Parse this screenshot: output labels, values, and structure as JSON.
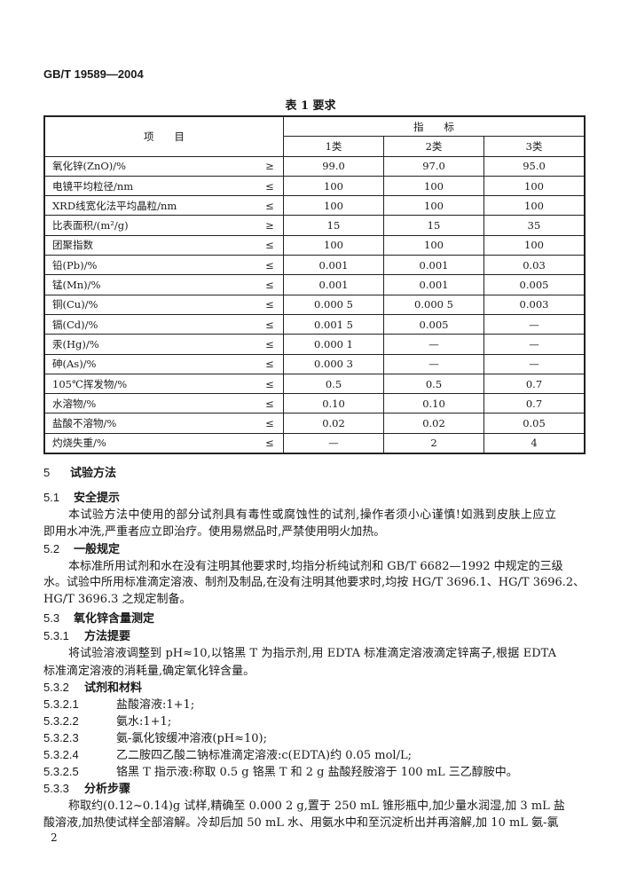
{
  "header": {
    "standard_number": "GB/T 19589—2004"
  },
  "table": {
    "title": "表 1  要求",
    "col_item": "项　　目",
    "col_group": "指　　标",
    "categories": [
      "1类",
      "2类",
      "3类"
    ],
    "rows": [
      {
        "item": "氧化锌(ZnO)/%",
        "op": "≥",
        "values": [
          "99.0",
          "97.0",
          "95.0"
        ]
      },
      {
        "item": "电镜平均粒径/nm",
        "op": "≤",
        "values": [
          "100",
          "100",
          "100"
        ]
      },
      {
        "item": "XRD线宽化法平均晶粒/nm",
        "op": "≤",
        "values": [
          "100",
          "100",
          "100"
        ]
      },
      {
        "item": "比表面积/(m²/g)",
        "op": "≥",
        "values": [
          "15",
          "15",
          "35"
        ]
      },
      {
        "item": "团聚指数",
        "op": "≤",
        "values": [
          "100",
          "100",
          "100"
        ]
      },
      {
        "item": "铅(Pb)/%",
        "op": "≤",
        "values": [
          "0.001",
          "0.001",
          "0.03"
        ]
      },
      {
        "item": "锰(Mn)/%",
        "op": "≤",
        "values": [
          "0.001",
          "0.001",
          "0.005"
        ]
      },
      {
        "item": "铜(Cu)/%",
        "op": "≤",
        "values": [
          "0.000 5",
          "0.000 5",
          "0.003"
        ]
      },
      {
        "item": "镉(Cd)/%",
        "op": "≤",
        "values": [
          "0.001 5",
          "0.005",
          "—"
        ]
      },
      {
        "item": "汞(Hg)/%",
        "op": "≤",
        "values": [
          "0.000 1",
          "—",
          "—"
        ]
      },
      {
        "item": "砷(As)/%",
        "op": "≤",
        "values": [
          "0.000 3",
          "—",
          "—"
        ]
      },
      {
        "item": "105℃挥发物/%",
        "op": "≤",
        "values": [
          "0.5",
          "0.5",
          "0.7"
        ]
      },
      {
        "item": "水溶物/%",
        "op": "≤",
        "values": [
          "0.10",
          "0.10",
          "0.7"
        ]
      },
      {
        "item": "盐酸不溶物/%",
        "op": "≤",
        "values": [
          "0.02",
          "0.02",
          "0.05"
        ]
      },
      {
        "item": "灼烧失重/%",
        "op": "≤",
        "values": [
          "—",
          "2",
          "4"
        ]
      }
    ]
  },
  "sections": {
    "s5": {
      "num": "5",
      "title": "试验方法"
    },
    "s5_1": {
      "num": "5.1",
      "title": "安全提示",
      "lines": [
        "本试验方法中使用的部分试剂具有毒性或腐蚀性的试剂,操作者须小心谨慎!如溅到皮肤上应立",
        "即用水冲洗,严重者应立即治疗。使用易燃品时,严禁使用明火加热。"
      ]
    },
    "s5_2": {
      "num": "5.2",
      "title": "一般规定",
      "lines": [
        "本标准所用试剂和水在没有注明其他要求时,均指分析纯试剂和 GB/T 6682—1992 中规定的三级",
        "水。试验中所用标准滴定溶液、制剂及制品,在没有注明其他要求时,均按 HG/T 3696.1、HG/T 3696.2、",
        "HG/T 3696.3 之规定制备。"
      ]
    },
    "s5_3": {
      "num": "5.3",
      "title": "氧化锌含量测定"
    },
    "s5_3_1": {
      "num": "5.3.1",
      "title": "方法提要",
      "lines": [
        "将试验溶液调整到 pH≈10,以铬黑 T 为指示剂,用 EDTA 标准滴定溶液滴定锌离子,根据 EDTA",
        "标准滴定溶液的消耗量,确定氧化锌含量。"
      ]
    },
    "s5_3_2": {
      "num": "5.3.2",
      "title": "试剂和材料",
      "items": [
        {
          "num": "5.3.2.1",
          "text": "盐酸溶液:1+1;"
        },
        {
          "num": "5.3.2.2",
          "text": "氨水:1+1;"
        },
        {
          "num": "5.3.2.3",
          "text": "氨-氯化铵缓冲溶液(pH≈10);"
        },
        {
          "num": "5.3.2.4",
          "text": "乙二胺四乙酸二钠标准滴定溶液:c(EDTA)约 0.05 mol/L;"
        },
        {
          "num": "5.3.2.5",
          "text": "铬黑 T 指示液:称取 0.5 g 铬黑 T 和 2 g 盐酸羟胺溶于 100 mL 三乙醇胺中。"
        }
      ]
    },
    "s5_3_3": {
      "num": "5.3.3",
      "title": "分析步骤",
      "lines": [
        "称取约(0.12~0.14)g 试样,精确至 0.000 2 g,置于 250 mL 锥形瓶中,加少量水润湿,加 3 mL 盐",
        "酸溶液,加热使试样全部溶解。冷却后加 50 mL 水、用氨水中和至沉淀析出并再溶解,加 10 mL 氨-氯"
      ]
    }
  },
  "footer": {
    "page_number": "2"
  }
}
